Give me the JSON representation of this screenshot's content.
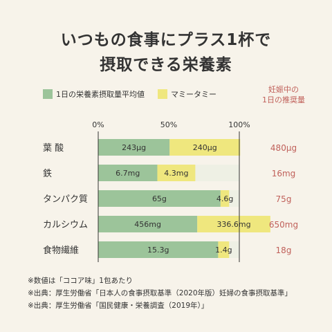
{
  "title_line1": "いつもの食事にプラス1杯で",
  "title_line2": "摂取できる栄養素",
  "legend": {
    "average_label": "1日の栄養素摂取量平均値",
    "product_label": "マミータミー",
    "recommended_line1": "妊娠中の",
    "recommended_line2": "1日の推奨量"
  },
  "colors": {
    "average": "#9cc49a",
    "product": "#efe77e",
    "remaining": "#eef0e4",
    "recommended_text": "#c0605a"
  },
  "chart_data": {
    "type": "bar",
    "orientation": "horizontal",
    "stacked": true,
    "unit": "% of recommended amount",
    "xlim": [
      0,
      100
    ],
    "ticks": [
      "0%",
      "50%",
      "100%"
    ],
    "categories": [
      "葉 酸",
      "鉄",
      "タンパク質",
      "カルシウム",
      "食物繊維"
    ],
    "series": [
      {
        "name": "1日の栄養素摂取量平均値",
        "values_pct": [
          50.6,
          41.9,
          86.7,
          70.2,
          85.0
        ],
        "labels": [
          "243μg",
          "6.7mg",
          "65g",
          "456mg",
          "15.3g"
        ]
      },
      {
        "name": "マミータミー",
        "values_pct": [
          50.0,
          26.9,
          6.1,
          51.8,
          7.8
        ],
        "labels": [
          "240μg",
          "4.3mg",
          "4.6g",
          "336.6mg",
          "1.4g"
        ]
      }
    ],
    "recommended": [
      "480μg",
      "16mg",
      "75g",
      "650mg",
      "18g"
    ]
  },
  "notes": [
    "※数値は「ココア味」1包あたり",
    "※出典：厚生労働省「日本人の食事摂取基準（2020年版）妊婦の食事摂取基準」",
    "※出典：厚生労働省「国民健康・栄養調査（2019年）」"
  ]
}
